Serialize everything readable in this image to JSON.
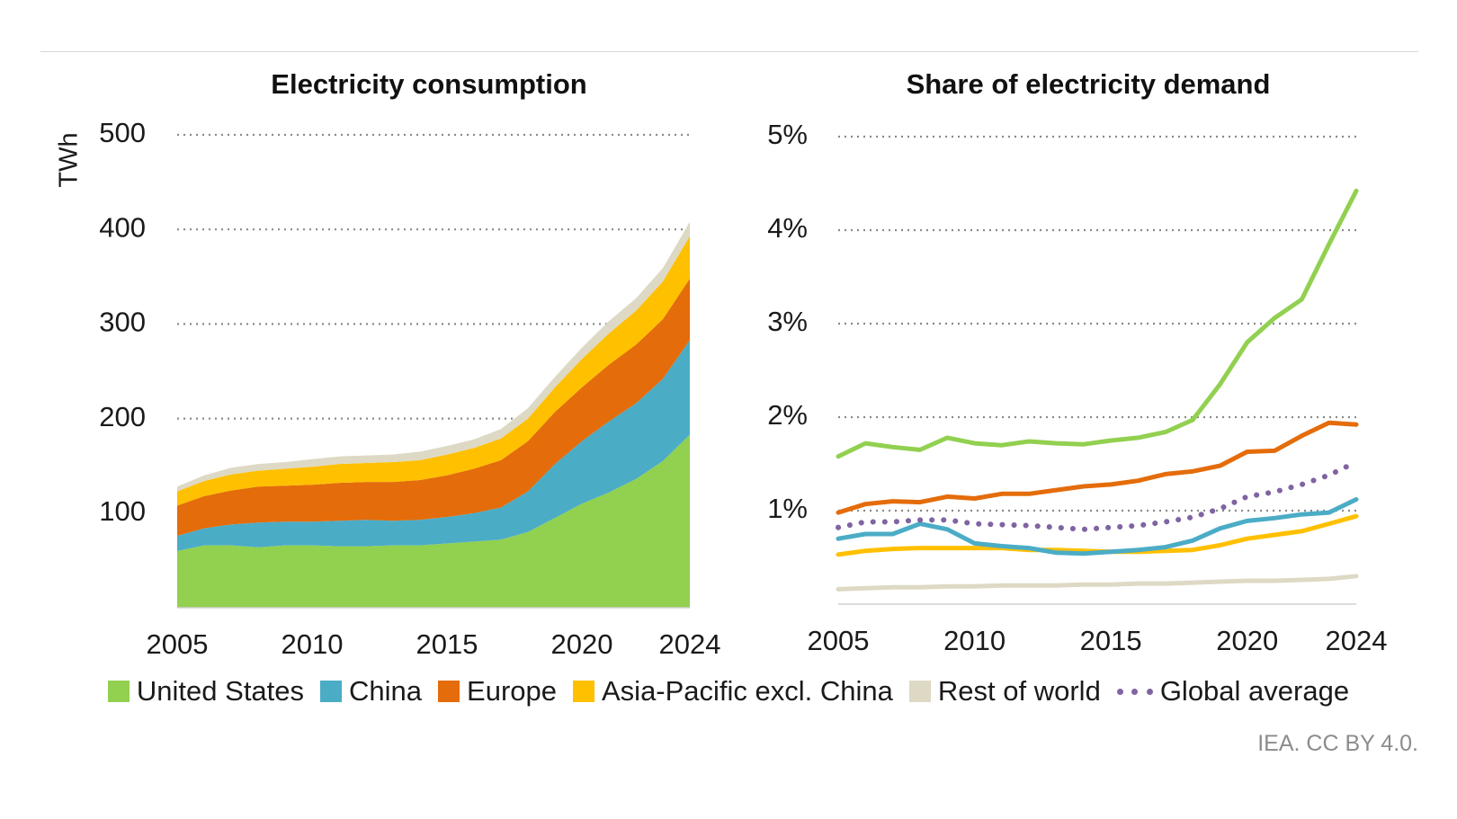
{
  "colors": {
    "united_states": "#92d050",
    "china": "#4bacc6",
    "europe": "#e46c0a",
    "asia_pacific": "#ffc000",
    "rest_of_world": "#ddd9c4",
    "global_average": "#8064a2"
  },
  "legend": [
    {
      "label": "United States",
      "key": "united_states",
      "style": "square"
    },
    {
      "label": "China",
      "key": "china",
      "style": "square"
    },
    {
      "label": "Europe",
      "key": "europe",
      "style": "square"
    },
    {
      "label": "Asia-Pacific excl. China",
      "key": "asia_pacific",
      "style": "square"
    },
    {
      "label": "Rest of world",
      "key": "rest_of_world",
      "style": "square"
    },
    {
      "label": "Global average",
      "key": "global_average",
      "style": "dots"
    }
  ],
  "credit": "IEA. CC BY 4.0.",
  "chart_data": [
    {
      "type": "area",
      "stacked": true,
      "title": "Electricity consumption",
      "ylabel": "TWh",
      "xlabel": "",
      "ylim": [
        0,
        500
      ],
      "yticks": [
        100,
        200,
        300,
        400,
        500
      ],
      "ytick_labels": [
        "100",
        "200",
        "300",
        "400",
        "500"
      ],
      "xticks": [
        2005,
        2010,
        2015,
        2020,
        2024
      ],
      "xtick_labels": [
        "2005",
        "2010",
        "2015",
        "2020",
        "2024"
      ],
      "grid": true,
      "x": [
        2005,
        2006,
        2007,
        2008,
        2009,
        2010,
        2011,
        2012,
        2013,
        2014,
        2015,
        2016,
        2017,
        2018,
        2019,
        2020,
        2021,
        2022,
        2023,
        2024
      ],
      "series": [
        {
          "name": "United States",
          "key": "united_states",
          "values": [
            60,
            66,
            66,
            64,
            66,
            66,
            65,
            65,
            66,
            66,
            68,
            70,
            72,
            80,
            95,
            110,
            122,
            136,
            155,
            183
          ]
        },
        {
          "name": "China",
          "key": "china",
          "values": [
            16,
            18,
            22,
            26,
            25,
            25,
            27,
            28,
            26,
            27,
            28,
            30,
            34,
            43,
            57,
            66,
            75,
            80,
            87,
            100
          ]
        },
        {
          "name": "Europe",
          "key": "europe",
          "values": [
            32,
            34,
            36,
            38,
            38,
            39,
            40,
            40,
            41,
            42,
            44,
            47,
            50,
            53,
            55,
            57,
            60,
            62,
            63,
            65
          ]
        },
        {
          "name": "Asia-Pacific excl. China",
          "key": "asia_pacific",
          "values": [
            15,
            16,
            17,
            17,
            18,
            19,
            20,
            20,
            21,
            21,
            22,
            22,
            23,
            24,
            26,
            30,
            33,
            36,
            40,
            45
          ]
        },
        {
          "name": "Rest of world",
          "key": "rest_of_world",
          "values": [
            5,
            6,
            7,
            7,
            7,
            8,
            8,
            8,
            8,
            9,
            9,
            9,
            10,
            11,
            11,
            12,
            13,
            13,
            14,
            15
          ]
        }
      ]
    },
    {
      "type": "line",
      "title": "Share of electricity demand",
      "ylabel": "",
      "xlabel": "",
      "ylim": [
        0,
        5
      ],
      "yunit": "%",
      "yticks": [
        1,
        2,
        3,
        4,
        5
      ],
      "ytick_labels": [
        "1%",
        "2%",
        "3%",
        "4%",
        "5%"
      ],
      "xticks": [
        2005,
        2010,
        2015,
        2020,
        2024
      ],
      "xtick_labels": [
        "2005",
        "2010",
        "2015",
        "2020",
        "2024"
      ],
      "grid": true,
      "x": [
        2005,
        2006,
        2007,
        2008,
        2009,
        2010,
        2011,
        2012,
        2013,
        2014,
        2015,
        2016,
        2017,
        2018,
        2019,
        2020,
        2021,
        2022,
        2023,
        2024
      ],
      "series": [
        {
          "name": "United States",
          "key": "united_states",
          "values": [
            1.58,
            1.72,
            1.68,
            1.65,
            1.78,
            1.72,
            1.7,
            1.74,
            1.72,
            1.71,
            1.75,
            1.78,
            1.84,
            1.97,
            2.35,
            2.8,
            3.06,
            3.26,
            3.85,
            4.42
          ]
        },
        {
          "name": "China",
          "key": "china",
          "values": [
            0.7,
            0.75,
            0.75,
            0.86,
            0.8,
            0.65,
            0.62,
            0.6,
            0.55,
            0.54,
            0.56,
            0.58,
            0.61,
            0.68,
            0.81,
            0.89,
            0.92,
            0.96,
            0.98,
            1.12
          ]
        },
        {
          "name": "Europe",
          "key": "europe",
          "values": [
            0.98,
            1.07,
            1.1,
            1.09,
            1.15,
            1.13,
            1.18,
            1.18,
            1.22,
            1.26,
            1.28,
            1.32,
            1.39,
            1.42,
            1.48,
            1.63,
            1.64,
            1.8,
            1.94,
            1.92
          ]
        },
        {
          "name": "Asia-Pacific excl. China",
          "key": "asia_pacific",
          "values": [
            0.53,
            0.57,
            0.59,
            0.6,
            0.6,
            0.6,
            0.6,
            0.58,
            0.58,
            0.57,
            0.56,
            0.56,
            0.57,
            0.58,
            0.63,
            0.7,
            0.74,
            0.78,
            0.86,
            0.94
          ]
        },
        {
          "name": "Rest of world",
          "key": "rest_of_world",
          "values": [
            0.16,
            0.17,
            0.18,
            0.18,
            0.19,
            0.19,
            0.2,
            0.2,
            0.2,
            0.21,
            0.21,
            0.22,
            0.22,
            0.23,
            0.24,
            0.25,
            0.25,
            0.26,
            0.27,
            0.3
          ]
        },
        {
          "name": "Global average",
          "key": "global_average",
          "style": "dotted",
          "values": [
            0.82,
            0.88,
            0.88,
            0.9,
            0.9,
            0.86,
            0.85,
            0.84,
            0.82,
            0.8,
            0.82,
            0.84,
            0.88,
            0.93,
            1.02,
            1.15,
            1.2,
            1.28,
            1.38,
            1.52
          ]
        }
      ]
    }
  ]
}
